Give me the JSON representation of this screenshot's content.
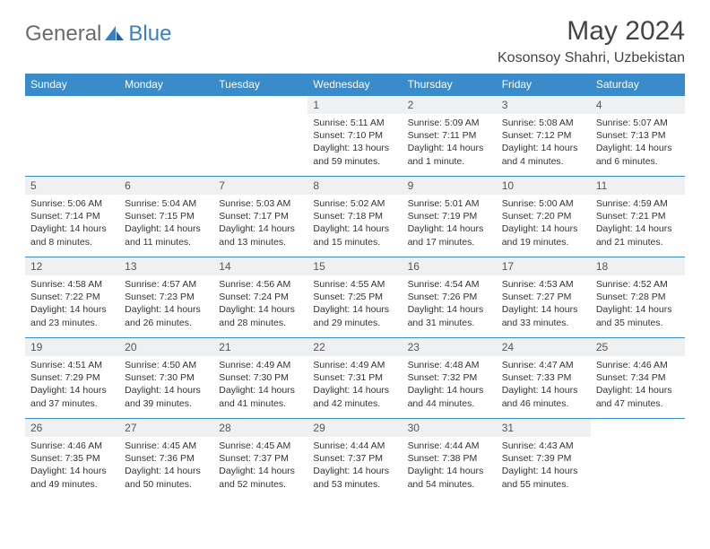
{
  "logo": {
    "text1": "General",
    "text2": "Blue"
  },
  "title": "May 2024",
  "location": "Kosonsoy Shahri, Uzbekistan",
  "colors": {
    "header_bg": "#3a8bc9",
    "header_text": "#ffffff",
    "daynum_bg": "#eef0f2",
    "border": "#3a8bc9",
    "logo_gray": "#6b6b6b",
    "logo_blue": "#3a7fc4"
  },
  "dayHeaders": [
    "Sunday",
    "Monday",
    "Tuesday",
    "Wednesday",
    "Thursday",
    "Friday",
    "Saturday"
  ],
  "weeks": [
    [
      {
        "empty": true
      },
      {
        "empty": true
      },
      {
        "empty": true
      },
      {
        "num": "1",
        "sunrise": "5:11 AM",
        "sunset": "7:10 PM",
        "daylight": "13 hours and 59 minutes."
      },
      {
        "num": "2",
        "sunrise": "5:09 AM",
        "sunset": "7:11 PM",
        "daylight": "14 hours and 1 minute."
      },
      {
        "num": "3",
        "sunrise": "5:08 AM",
        "sunset": "7:12 PM",
        "daylight": "14 hours and 4 minutes."
      },
      {
        "num": "4",
        "sunrise": "5:07 AM",
        "sunset": "7:13 PM",
        "daylight": "14 hours and 6 minutes."
      }
    ],
    [
      {
        "num": "5",
        "sunrise": "5:06 AM",
        "sunset": "7:14 PM",
        "daylight": "14 hours and 8 minutes."
      },
      {
        "num": "6",
        "sunrise": "5:04 AM",
        "sunset": "7:15 PM",
        "daylight": "14 hours and 11 minutes."
      },
      {
        "num": "7",
        "sunrise": "5:03 AM",
        "sunset": "7:17 PM",
        "daylight": "14 hours and 13 minutes."
      },
      {
        "num": "8",
        "sunrise": "5:02 AM",
        "sunset": "7:18 PM",
        "daylight": "14 hours and 15 minutes."
      },
      {
        "num": "9",
        "sunrise": "5:01 AM",
        "sunset": "7:19 PM",
        "daylight": "14 hours and 17 minutes."
      },
      {
        "num": "10",
        "sunrise": "5:00 AM",
        "sunset": "7:20 PM",
        "daylight": "14 hours and 19 minutes."
      },
      {
        "num": "11",
        "sunrise": "4:59 AM",
        "sunset": "7:21 PM",
        "daylight": "14 hours and 21 minutes."
      }
    ],
    [
      {
        "num": "12",
        "sunrise": "4:58 AM",
        "sunset": "7:22 PM",
        "daylight": "14 hours and 23 minutes."
      },
      {
        "num": "13",
        "sunrise": "4:57 AM",
        "sunset": "7:23 PM",
        "daylight": "14 hours and 26 minutes."
      },
      {
        "num": "14",
        "sunrise": "4:56 AM",
        "sunset": "7:24 PM",
        "daylight": "14 hours and 28 minutes."
      },
      {
        "num": "15",
        "sunrise": "4:55 AM",
        "sunset": "7:25 PM",
        "daylight": "14 hours and 29 minutes."
      },
      {
        "num": "16",
        "sunrise": "4:54 AM",
        "sunset": "7:26 PM",
        "daylight": "14 hours and 31 minutes."
      },
      {
        "num": "17",
        "sunrise": "4:53 AM",
        "sunset": "7:27 PM",
        "daylight": "14 hours and 33 minutes."
      },
      {
        "num": "18",
        "sunrise": "4:52 AM",
        "sunset": "7:28 PM",
        "daylight": "14 hours and 35 minutes."
      }
    ],
    [
      {
        "num": "19",
        "sunrise": "4:51 AM",
        "sunset": "7:29 PM",
        "daylight": "14 hours and 37 minutes."
      },
      {
        "num": "20",
        "sunrise": "4:50 AM",
        "sunset": "7:30 PM",
        "daylight": "14 hours and 39 minutes."
      },
      {
        "num": "21",
        "sunrise": "4:49 AM",
        "sunset": "7:30 PM",
        "daylight": "14 hours and 41 minutes."
      },
      {
        "num": "22",
        "sunrise": "4:49 AM",
        "sunset": "7:31 PM",
        "daylight": "14 hours and 42 minutes."
      },
      {
        "num": "23",
        "sunrise": "4:48 AM",
        "sunset": "7:32 PM",
        "daylight": "14 hours and 44 minutes."
      },
      {
        "num": "24",
        "sunrise": "4:47 AM",
        "sunset": "7:33 PM",
        "daylight": "14 hours and 46 minutes."
      },
      {
        "num": "25",
        "sunrise": "4:46 AM",
        "sunset": "7:34 PM",
        "daylight": "14 hours and 47 minutes."
      }
    ],
    [
      {
        "num": "26",
        "sunrise": "4:46 AM",
        "sunset": "7:35 PM",
        "daylight": "14 hours and 49 minutes."
      },
      {
        "num": "27",
        "sunrise": "4:45 AM",
        "sunset": "7:36 PM",
        "daylight": "14 hours and 50 minutes."
      },
      {
        "num": "28",
        "sunrise": "4:45 AM",
        "sunset": "7:37 PM",
        "daylight": "14 hours and 52 minutes."
      },
      {
        "num": "29",
        "sunrise": "4:44 AM",
        "sunset": "7:37 PM",
        "daylight": "14 hours and 53 minutes."
      },
      {
        "num": "30",
        "sunrise": "4:44 AM",
        "sunset": "7:38 PM",
        "daylight": "14 hours and 54 minutes."
      },
      {
        "num": "31",
        "sunrise": "4:43 AM",
        "sunset": "7:39 PM",
        "daylight": "14 hours and 55 minutes."
      },
      {
        "empty": true
      }
    ]
  ],
  "labels": {
    "sunrise": "Sunrise: ",
    "sunset": "Sunset: ",
    "daylight": "Daylight: "
  }
}
